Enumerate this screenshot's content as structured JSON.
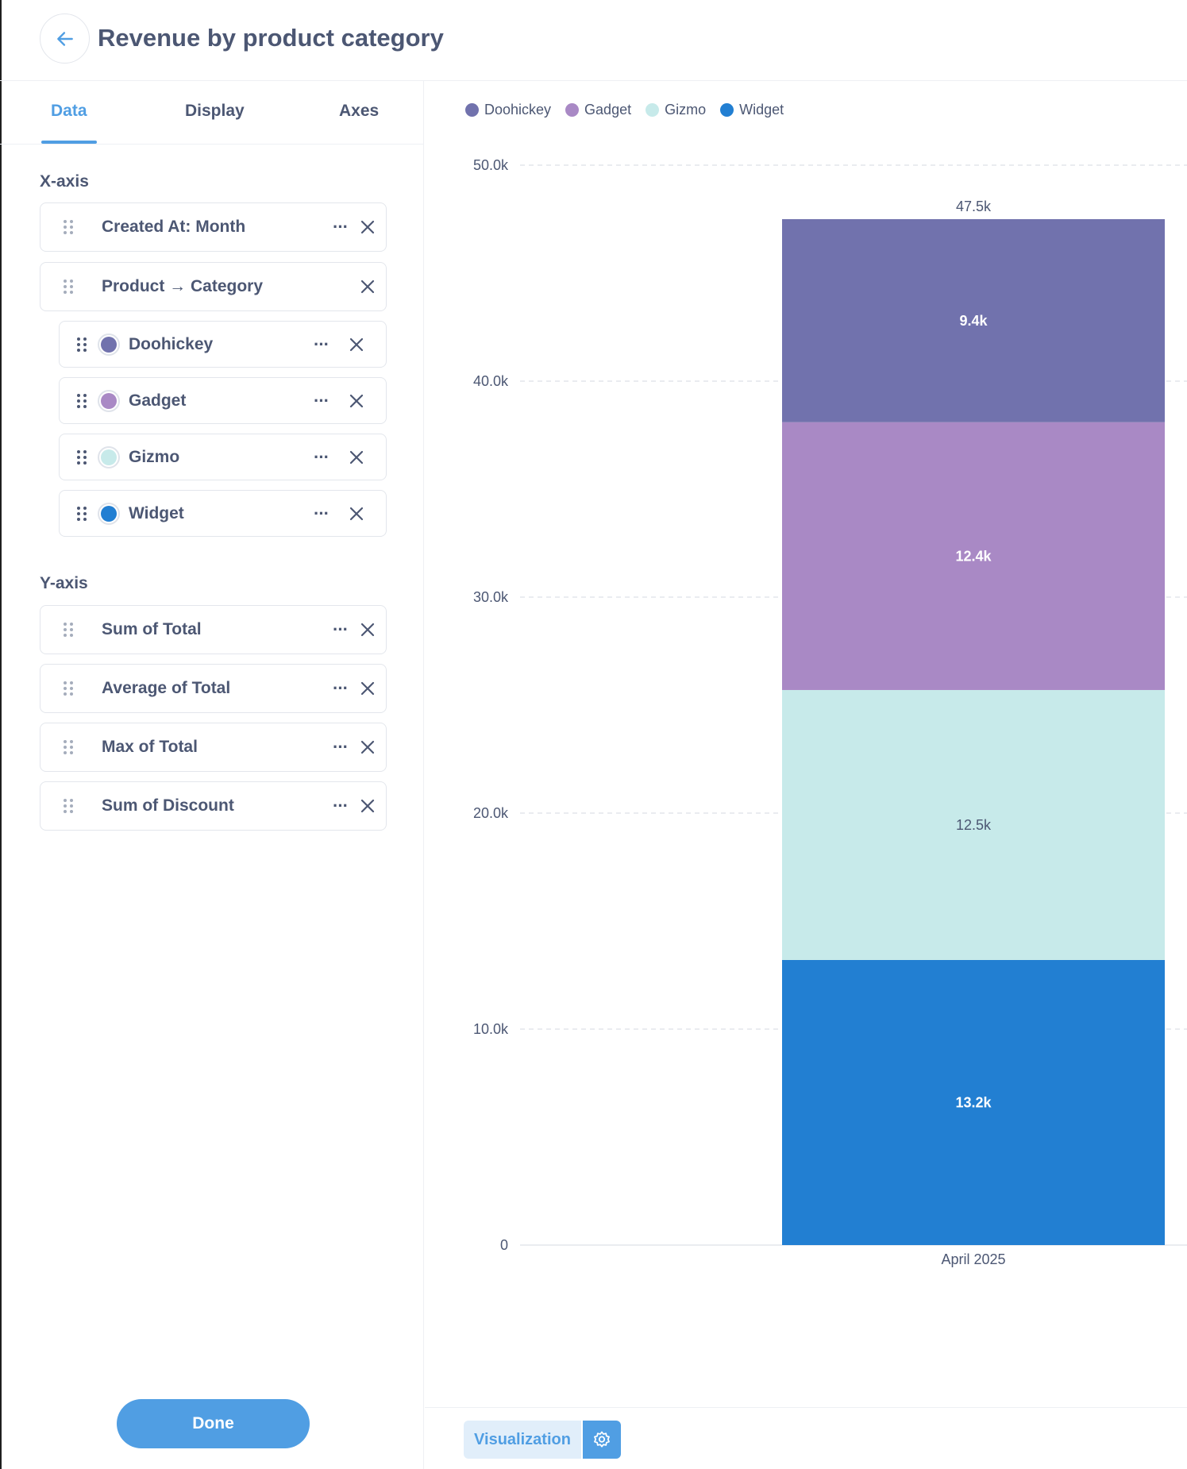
{
  "header": {
    "title": "Revenue by product category"
  },
  "tabs": [
    {
      "label": "Data",
      "active": true
    },
    {
      "label": "Display",
      "active": false
    },
    {
      "label": "Axes",
      "active": false
    }
  ],
  "x_axis": {
    "label": "X-axis",
    "fields": [
      {
        "label": "Created At: Month"
      },
      {
        "label": "Product → Category"
      }
    ],
    "breakouts": [
      {
        "label": "Doohickey",
        "color": "#7172ad"
      },
      {
        "label": "Gadget",
        "color": "#a989c5"
      },
      {
        "label": "Gizmo",
        "color": "#c7eaea"
      },
      {
        "label": "Widget",
        "color": "#227fd2"
      }
    ]
  },
  "y_axis": {
    "label": "Y-axis",
    "fields": [
      {
        "label": "Sum of Total"
      },
      {
        "label": "Average of Total"
      },
      {
        "label": "Max of Total"
      },
      {
        "label": "Sum of Discount"
      }
    ]
  },
  "buttons": {
    "done": "Done",
    "visualization": "Visualization"
  },
  "icons": {
    "back": "arrow-left-icon",
    "more": "ellipsis-icon",
    "close": "close-icon",
    "grip": "grip-icon",
    "settings": "gear-icon"
  },
  "colors": {
    "accent": "#509ee3",
    "text": "#4c5773"
  },
  "chart_data": {
    "type": "bar",
    "stacked": true,
    "categories": [
      "April 2025"
    ],
    "series": [
      {
        "name": "Widget",
        "values": [
          13.2
        ],
        "label": "13.2k",
        "color": "#227fd2"
      },
      {
        "name": "Gizmo",
        "values": [
          12.5
        ],
        "label": "12.5k",
        "color": "#c7eaea"
      },
      {
        "name": "Gadget",
        "values": [
          12.4
        ],
        "label": "12.4k",
        "color": "#a989c5"
      },
      {
        "name": "Doohickey",
        "values": [
          9.4
        ],
        "label": "9.4k",
        "color": "#7172ad"
      }
    ],
    "total_label": "47.5k",
    "unit": "thousands",
    "ylim": [
      0,
      50
    ],
    "yticks": [
      0,
      10,
      20,
      30,
      40,
      50
    ],
    "ytick_labels": [
      "0",
      "10.0k",
      "20.0k",
      "30.0k",
      "40.0k",
      "50.0k"
    ],
    "grid": true,
    "legend_position": "top-left"
  }
}
